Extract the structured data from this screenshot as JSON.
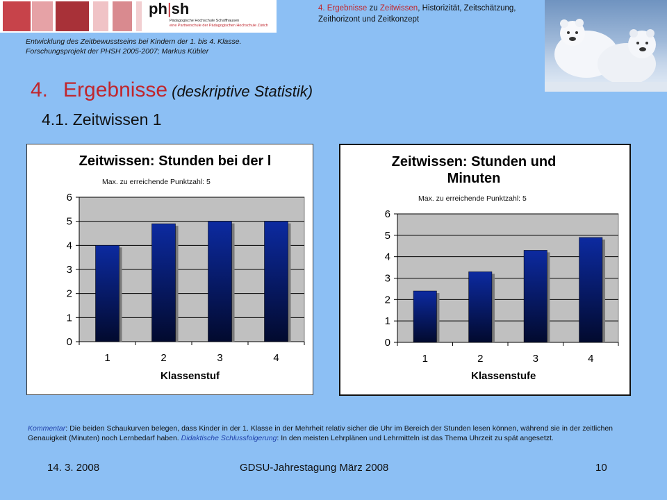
{
  "header": {
    "logo": {
      "brand_left": "ph",
      "brand_right": "sh",
      "line1": "Pädagogische Hochschule Schaffhausen",
      "line2": "eine Partnerschule der Pädagogischen Hochschule Zürich",
      "stripe_colors": [
        "#c7434a",
        "#e6a2a6",
        "#f2cfd1",
        "#a83138",
        "#d98a8f",
        "#f0c3c6"
      ]
    },
    "topic": {
      "part1": "4. Ergebnisse",
      "part2": " zu ",
      "part3": "Zeitwissen",
      "part4": ", Historizität, Zeitschätzung, Zeithorizont und Zeitkonzept"
    },
    "project_line1": "Entwicklung des Zeitbewusstseins bei Kindern der 1. bis 4. Klasse.",
    "project_line2": "Forschungsprojekt  der PHSH 2005-2007;  Markus Kübler"
  },
  "title": {
    "number": "4.",
    "text": "Ergebnisse",
    "qualifier": "(deskriptive Statistik)"
  },
  "subtitle": "4.1. Zeitwissen 1",
  "chart_data": [
    {
      "type": "bar",
      "title": "Zeitwissen: Stunden bei der l",
      "note": "Max. zu erreichende Punktzahl: 5",
      "xlabel": "Klassenstuf",
      "ylabel": "",
      "categories": [
        "1",
        "2",
        "3",
        "4"
      ],
      "values": [
        4.0,
        4.9,
        5.0,
        5.0
      ],
      "ylim": [
        0,
        6
      ],
      "yticks": [
        "0",
        "1",
        "2",
        "3",
        "4",
        "5",
        "6"
      ],
      "grid": true,
      "bar_color": "#0a1a6e"
    },
    {
      "type": "bar",
      "title": "Zeitwissen: Stunden und Minuten",
      "note": "Max. zu erreichende Punktzahl: 5",
      "xlabel": "Klassenstufe",
      "ylabel": "",
      "categories": [
        "1",
        "2",
        "3",
        "4"
      ],
      "values": [
        2.4,
        3.3,
        4.3,
        4.9
      ],
      "ylim": [
        0,
        6
      ],
      "yticks": [
        "0",
        "1",
        "2",
        "3",
        "4",
        "5",
        "6"
      ],
      "grid": true,
      "bar_color": "#0a1a6e"
    }
  ],
  "chart_titles": {
    "c1": "Zeitwissen: Stunden bei der l",
    "c2_line1": "Zeitwissen: Stunden und",
    "c2_line2": "Minuten"
  },
  "comment": {
    "label": "Kommentar",
    "text1": ": Die beiden Schaukurven belegen, dass Kinder in der 1. Klasse in der Mehrheit relativ sicher die Uhr im Bereich der Stunden lesen können, während sie in der zeitlichen Genauigkeit (Minuten) noch Lernbedarf haben. ",
    "label2": "Didaktische Schlussfolgerung",
    "text2": ": In den meisten Lehrplänen und Lehrmitteln ist das Thema Uhrzeit zu spät angesetzt."
  },
  "footer": {
    "date": "14. 3. 2008",
    "event": "GDSU-Jahrestagung März 2008",
    "page": "10"
  }
}
